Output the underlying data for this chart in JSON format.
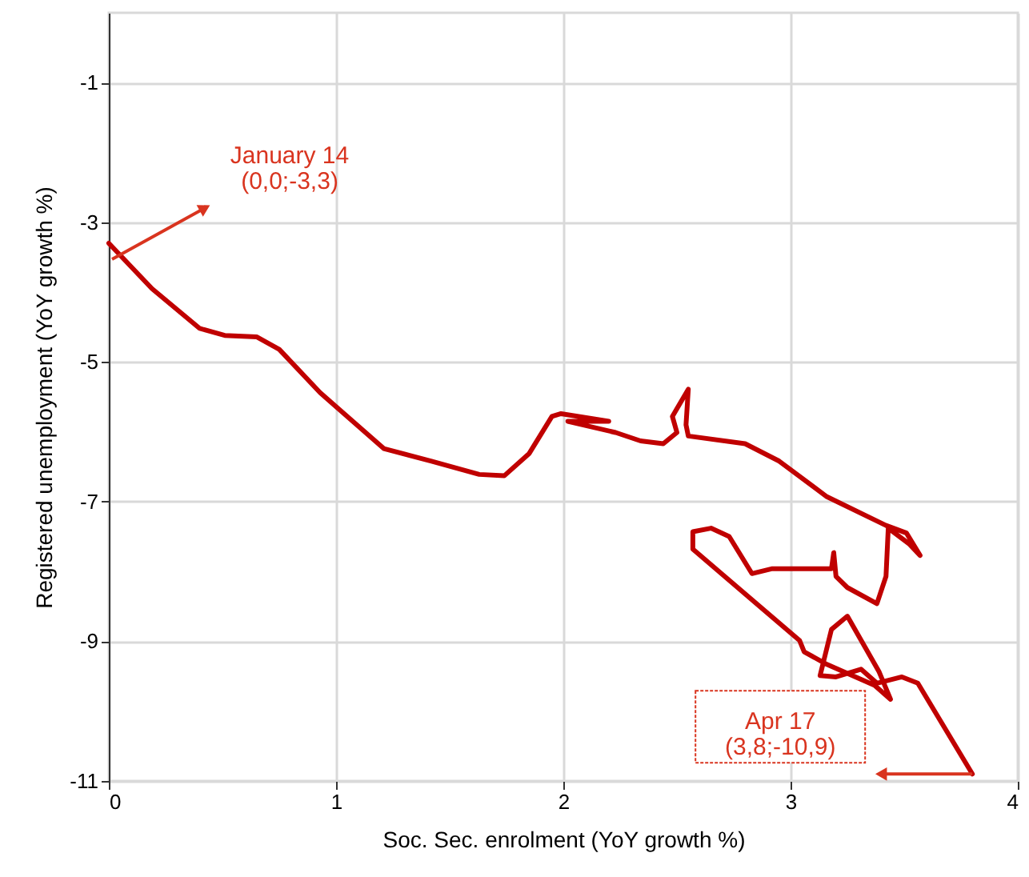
{
  "chart_data": {
    "type": "line",
    "xlabel": "Soc. Sec. enrolment (YoY growth %)",
    "ylabel": "Registered unemployment (YoY growth %)",
    "xlim": [
      0,
      4
    ],
    "xticks": [
      0,
      1,
      2,
      3,
      4
    ],
    "ylim": [
      -11,
      0
    ],
    "yticks": [
      -1,
      -3,
      -5,
      -7,
      -9,
      -11
    ],
    "grid": true,
    "marker": "none",
    "line_style": "solid",
    "series": [
      {
        "color": "#c00000",
        "x": [
          0.0,
          0.19,
          0.4,
          0.51,
          0.65,
          0.75,
          0.93,
          1.21,
          1.42,
          1.63,
          1.74,
          1.85,
          1.95,
          1.99,
          2.2,
          2.02,
          2.23,
          2.34,
          2.44,
          2.5,
          2.48,
          2.55,
          2.54,
          2.55,
          2.8,
          2.95,
          3.16,
          3.42,
          3.51,
          3.57,
          3.52,
          3.43,
          3.42,
          3.38,
          3.25,
          3.2,
          3.19,
          3.18,
          3.04,
          2.92,
          2.83,
          2.73,
          2.65,
          2.57,
          2.57,
          3.04,
          3.06,
          3.16,
          3.37,
          3.44,
          3.39,
          3.25,
          3.18,
          3.13,
          3.2,
          3.31,
          3.38,
          3.49,
          3.56,
          3.8
        ],
        "values": [
          -3.3,
          -3.95,
          -4.52,
          -4.62,
          -4.64,
          -4.82,
          -5.44,
          -6.24,
          -6.42,
          -6.61,
          -6.63,
          -6.31,
          -5.78,
          -5.74,
          -5.85,
          -5.85,
          -6.01,
          -6.13,
          -6.17,
          -6.01,
          -5.78,
          -5.39,
          -5.9,
          -6.06,
          -6.17,
          -6.42,
          -6.93,
          -7.34,
          -7.45,
          -7.77,
          -7.6,
          -7.38,
          -8.07,
          -8.46,
          -8.23,
          -8.07,
          -7.73,
          -7.96,
          -7.96,
          -7.96,
          -8.03,
          -7.5,
          -7.38,
          -7.43,
          -7.68,
          -8.99,
          -9.15,
          -9.33,
          -9.63,
          -9.83,
          -9.44,
          -8.64,
          -8.83,
          -9.49,
          -9.51,
          -9.4,
          -9.6,
          -9.51,
          -9.6,
          -10.9
        ]
      }
    ],
    "annotations": [
      "January 14\n(0,0;-3,3)",
      "Apr 17\n(3,8;-10,9)"
    ]
  }
}
